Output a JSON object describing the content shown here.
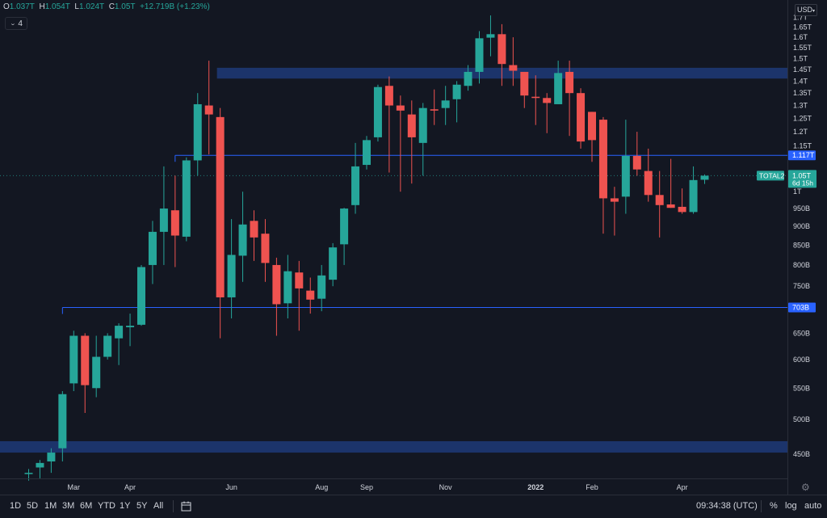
{
  "ohlc_readout": {
    "o_key": "O",
    "o_val": "1.037T",
    "h_key": "H",
    "h_val": "1.054T",
    "l_key": "L",
    "l_val": "1.024T",
    "c_key": "C",
    "c_val": "1.05T",
    "change": "+12.719B (+1.23%)"
  },
  "indicator_toggle": {
    "icon": "chevron-down-icon",
    "count": "4"
  },
  "currency": "USD",
  "bottom_bar": {
    "ranges": [
      "1D",
      "5D",
      "1M",
      "3M",
      "6M",
      "YTD",
      "1Y",
      "5Y",
      "All"
    ],
    "compare_icon": "date-range-icon",
    "time": "09:34:38 (UTC)",
    "percent": "%",
    "log": "log",
    "auto": "auto"
  },
  "colors": {
    "up": "#26a69a",
    "down": "#ef5350",
    "background": "#131722",
    "zone": "#1f3a78",
    "level_line": "#2962ff",
    "label_bg": "#2962ff"
  },
  "chart_data": {
    "type": "candlestick",
    "symbol": "TOTAL2",
    "timeframe": "1W",
    "y_scale": "log",
    "ylim": [
      422,
      1740
    ],
    "y_ticks": [
      {
        "v": 450,
        "label": "450B"
      },
      {
        "v": 500,
        "label": "500B"
      },
      {
        "v": 550,
        "label": "550B"
      },
      {
        "v": 600,
        "label": "600B"
      },
      {
        "v": 650,
        "label": "650B"
      },
      {
        "v": 750,
        "label": "750B"
      },
      {
        "v": 800,
        "label": "800B"
      },
      {
        "v": 850,
        "label": "850B"
      },
      {
        "v": 900,
        "label": "900B"
      },
      {
        "v": 950,
        "label": "950B"
      },
      {
        "v": 1000,
        "label": "1T"
      },
      {
        "v": 1150,
        "label": "1.15T"
      },
      {
        "v": 1200,
        "label": "1.2T"
      },
      {
        "v": 1250,
        "label": "1.25T"
      },
      {
        "v": 1300,
        "label": "1.3T"
      },
      {
        "v": 1350,
        "label": "1.35T"
      },
      {
        "v": 1400,
        "label": "1.4T"
      },
      {
        "v": 1450,
        "label": "1.45T"
      },
      {
        "v": 1500,
        "label": "1.5T"
      },
      {
        "v": 1550,
        "label": "1.55T"
      },
      {
        "v": 1600,
        "label": "1.6T"
      },
      {
        "v": 1650,
        "label": "1.65T"
      },
      {
        "v": 1700,
        "label": "1.7T"
      }
    ],
    "x_ticks": [
      {
        "i": 4,
        "label": "Mar"
      },
      {
        "i": 9,
        "label": "Apr"
      },
      {
        "i": 18,
        "label": "Jun"
      },
      {
        "i": 26,
        "label": "Aug"
      },
      {
        "i": 30,
        "label": "Sep"
      },
      {
        "i": 37,
        "label": "Nov"
      },
      {
        "i": 45,
        "label": "2022"
      },
      {
        "i": 50,
        "label": "Feb"
      },
      {
        "i": 58,
        "label": "Apr"
      }
    ],
    "candles": [
      {
        "o": 425,
        "h": 430,
        "l": 415,
        "c": 425
      },
      {
        "o": 432,
        "h": 442,
        "l": 418,
        "c": 438
      },
      {
        "o": 440,
        "h": 458,
        "l": 425,
        "c": 452
      },
      {
        "o": 458,
        "h": 545,
        "l": 440,
        "c": 540
      },
      {
        "o": 558,
        "h": 655,
        "l": 545,
        "c": 645
      },
      {
        "o": 645,
        "h": 650,
        "l": 510,
        "c": 555
      },
      {
        "o": 550,
        "h": 645,
        "l": 535,
        "c": 605
      },
      {
        "o": 605,
        "h": 650,
        "l": 600,
        "c": 645
      },
      {
        "o": 640,
        "h": 670,
        "l": 590,
        "c": 665
      },
      {
        "o": 662,
        "h": 690,
        "l": 625,
        "c": 665
      },
      {
        "o": 667,
        "h": 800,
        "l": 665,
        "c": 795
      },
      {
        "o": 800,
        "h": 915,
        "l": 755,
        "c": 885
      },
      {
        "o": 885,
        "h": 1080,
        "l": 800,
        "c": 950
      },
      {
        "o": 945,
        "h": 1050,
        "l": 795,
        "c": 875
      },
      {
        "o": 872,
        "h": 1110,
        "l": 860,
        "c": 1100
      },
      {
        "o": 1100,
        "h": 1350,
        "l": 1050,
        "c": 1305
      },
      {
        "o": 1300,
        "h": 1490,
        "l": 1120,
        "c": 1265
      },
      {
        "o": 1255,
        "h": 1290,
        "l": 640,
        "c": 725
      },
      {
        "o": 725,
        "h": 920,
        "l": 680,
        "c": 825
      },
      {
        "o": 823,
        "h": 1000,
        "l": 760,
        "c": 905
      },
      {
        "o": 915,
        "h": 945,
        "l": 810,
        "c": 870
      },
      {
        "o": 880,
        "h": 920,
        "l": 760,
        "c": 805
      },
      {
        "o": 800,
        "h": 818,
        "l": 645,
        "c": 710
      },
      {
        "o": 712,
        "h": 825,
        "l": 680,
        "c": 785
      },
      {
        "o": 782,
        "h": 810,
        "l": 655,
        "c": 745
      },
      {
        "o": 740,
        "h": 770,
        "l": 690,
        "c": 720
      },
      {
        "o": 722,
        "h": 800,
        "l": 695,
        "c": 775
      },
      {
        "o": 765,
        "h": 855,
        "l": 750,
        "c": 844
      },
      {
        "o": 852,
        "h": 952,
        "l": 800,
        "c": 950
      },
      {
        "o": 960,
        "h": 1160,
        "l": 935,
        "c": 1080
      },
      {
        "o": 1085,
        "h": 1185,
        "l": 1070,
        "c": 1170
      },
      {
        "o": 1180,
        "h": 1385,
        "l": 1165,
        "c": 1375
      },
      {
        "o": 1380,
        "h": 1420,
        "l": 1060,
        "c": 1300
      },
      {
        "o": 1300,
        "h": 1340,
        "l": 1000,
        "c": 1280
      },
      {
        "o": 1265,
        "h": 1320,
        "l": 1025,
        "c": 1180
      },
      {
        "o": 1160,
        "h": 1310,
        "l": 1050,
        "c": 1290
      },
      {
        "o": 1285,
        "h": 1365,
        "l": 1225,
        "c": 1280
      },
      {
        "o": 1290,
        "h": 1380,
        "l": 1225,
        "c": 1320
      },
      {
        "o": 1325,
        "h": 1400,
        "l": 1235,
        "c": 1385
      },
      {
        "o": 1380,
        "h": 1470,
        "l": 1360,
        "c": 1440
      },
      {
        "o": 1440,
        "h": 1630,
        "l": 1390,
        "c": 1595
      },
      {
        "o": 1598,
        "h": 1710,
        "l": 1510,
        "c": 1615
      },
      {
        "o": 1615,
        "h": 1665,
        "l": 1380,
        "c": 1475
      },
      {
        "o": 1470,
        "h": 1600,
        "l": 1380,
        "c": 1445
      },
      {
        "o": 1440,
        "h": 1440,
        "l": 1290,
        "c": 1340
      },
      {
        "o": 1335,
        "h": 1425,
        "l": 1225,
        "c": 1330
      },
      {
        "o": 1330,
        "h": 1350,
        "l": 1195,
        "c": 1310
      },
      {
        "o": 1305,
        "h": 1490,
        "l": 1310,
        "c": 1435
      },
      {
        "o": 1440,
        "h": 1490,
        "l": 1185,
        "c": 1350
      },
      {
        "o": 1350,
        "h": 1370,
        "l": 1140,
        "c": 1165
      },
      {
        "o": 1275,
        "h": 1275,
        "l": 1095,
        "c": 1170
      },
      {
        "o": 1245,
        "h": 1255,
        "l": 880,
        "c": 980
      },
      {
        "o": 980,
        "h": 1015,
        "l": 875,
        "c": 970
      },
      {
        "o": 985,
        "h": 1245,
        "l": 935,
        "c": 1115
      },
      {
        "o": 1115,
        "h": 1200,
        "l": 1050,
        "c": 1070
      },
      {
        "o": 1065,
        "h": 1140,
        "l": 970,
        "c": 990
      },
      {
        "o": 990,
        "h": 1065,
        "l": 870,
        "c": 960
      },
      {
        "o": 962,
        "h": 1105,
        "l": 955,
        "c": 952
      },
      {
        "o": 955,
        "h": 1010,
        "l": 935,
        "c": 940
      },
      {
        "o": 940,
        "h": 1080,
        "l": 935,
        "c": 1036
      },
      {
        "o": 1037,
        "h": 1054,
        "l": 1024,
        "c": 1050
      }
    ],
    "zones": [
      {
        "from": 1411,
        "to": 1458
      },
      {
        "from": 452,
        "to": 468
      }
    ],
    "levels": [
      {
        "v": 1117,
        "label": "1.117T",
        "start_i": 13
      },
      {
        "v": 703,
        "label": "703B",
        "start_i": 3
      }
    ],
    "current_price": {
      "v": 1050,
      "symbol": "TOTAL2",
      "label": "1.05T",
      "countdown": "6d 15h"
    }
  }
}
